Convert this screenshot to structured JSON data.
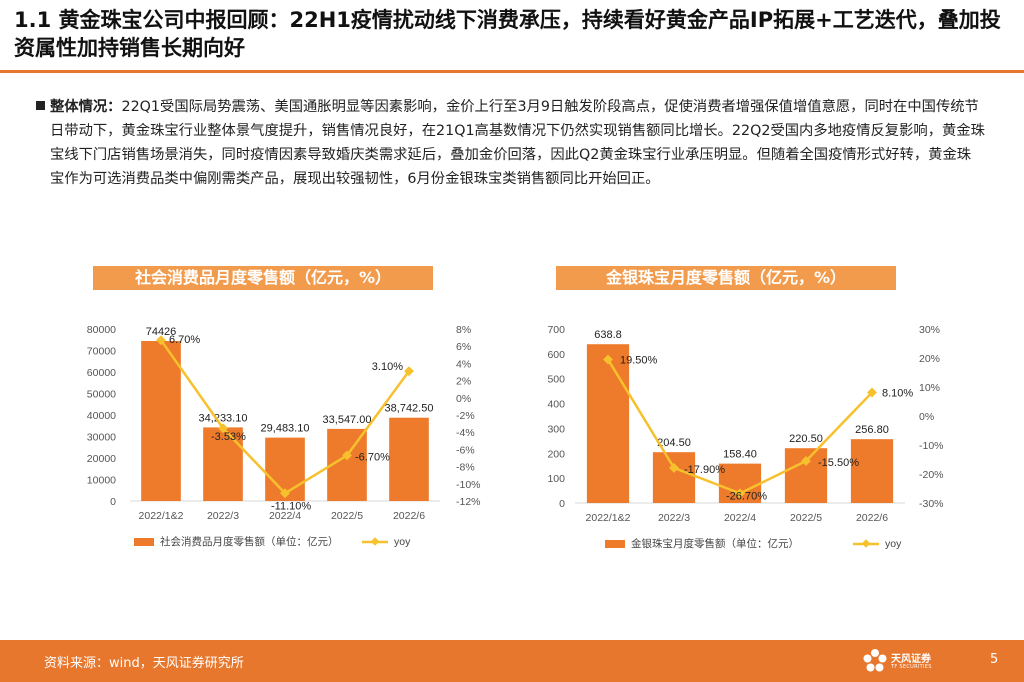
{
  "title": "1.1 黄金珠宝公司中报回顾：22H1疫情扰动线下消费承压，持续看好黄金产品IP拓展+工艺迭代，叠加投资属性加持销售长期向好",
  "bullet": {
    "lead": "整体情况：",
    "text": "22Q1受国际局势震荡、美国通胀明显等因素影响，金价上行至3月9日触发阶段高点，促使消费者增强保值增值意愿，同时在中国传统节日带动下，黄金珠宝行业整体景气度提升，销售情况良好，在21Q1高基数情况下仍然实现销售额同比增长。22Q2受国内多地疫情反复影响，黄金珠宝线下门店销售场景消失，同时疫情因素导致婚庆类需求延后，叠加金价回落，因此Q2黄金珠宝行业承压明显。但随着全国疫情形式好转，黄金珠宝作为可选消费品类中偏刚需类产品，展现出较强韧性，6月份金银珠宝类销售额同比开始回正。"
  },
  "footer": {
    "source": "资料来源：wind，天风证券研究所",
    "brand": "天风证券",
    "brand_en": "TF SECURITIES",
    "page": "5"
  },
  "colors": {
    "bar": "#ee7b2c",
    "line": "#f6c12c",
    "accent": "#e8772e",
    "banner": "#f29b4d"
  },
  "chart_data": [
    {
      "type": "bar",
      "title": "社会消费品月度零售额（亿元，%）",
      "categories": [
        "2022/1&2",
        "2022/3",
        "2022/4",
        "2022/5",
        "2022/6"
      ],
      "series": [
        {
          "name": "社会消费品月度零售额（单位：亿元）",
          "type": "bar",
          "axis": "left",
          "values": [
            74426,
            34233.1,
            29483.1,
            33547.0,
            38742.5
          ],
          "labels": [
            "74426",
            "34,233.10",
            "29,483.10",
            "33,547.00",
            "38,742.50"
          ]
        },
        {
          "name": "yoy",
          "type": "line",
          "axis": "right",
          "values": [
            6.7,
            -3.53,
            -11.1,
            -6.7,
            3.1
          ],
          "labels": [
            "6.70%",
            "-3.53%",
            "-11.10%",
            "-6.70%",
            "3.10%"
          ]
        }
      ],
      "ylim": [
        0,
        80000
      ],
      "yticks": [
        "80000",
        "70000",
        "60000",
        "50000",
        "40000",
        "30000",
        "20000",
        "10000",
        "0"
      ],
      "y2lim": [
        -12,
        8
      ],
      "y2ticks": [
        "8%",
        "6%",
        "4%",
        "2%",
        "0%",
        "-2%",
        "-4%",
        "-6%",
        "-8%",
        "-10%",
        "-12%"
      ],
      "legend": "bottom"
    },
    {
      "type": "bar",
      "title": "金银珠宝月度零售额（亿元，%）",
      "categories": [
        "2022/1&2",
        "2022/3",
        "2022/4",
        "2022/5",
        "2022/6"
      ],
      "series": [
        {
          "name": "金银珠宝月度零售额（单位：亿元）",
          "type": "bar",
          "axis": "left",
          "values": [
            638.8,
            204.5,
            158.4,
            220.5,
            256.8
          ],
          "labels": [
            "638.8",
            "204.50",
            "158.40",
            "220.50",
            "256.80"
          ]
        },
        {
          "name": "yoy",
          "type": "line",
          "axis": "right",
          "values": [
            19.5,
            -17.9,
            -26.7,
            -15.5,
            8.1
          ],
          "labels": [
            "19.50%",
            "-17.90%",
            "-26.70%",
            "-15.50%",
            "8.10%"
          ]
        }
      ],
      "ylim": [
        0,
        700
      ],
      "yticks": [
        "700",
        "600",
        "500",
        "400",
        "300",
        "200",
        "100",
        "0"
      ],
      "y2lim": [
        -30,
        30
      ],
      "y2ticks": [
        "30%",
        "20%",
        "10%",
        "0%",
        "-10%",
        "-20%",
        "-30%"
      ],
      "legend": "bottom"
    }
  ]
}
